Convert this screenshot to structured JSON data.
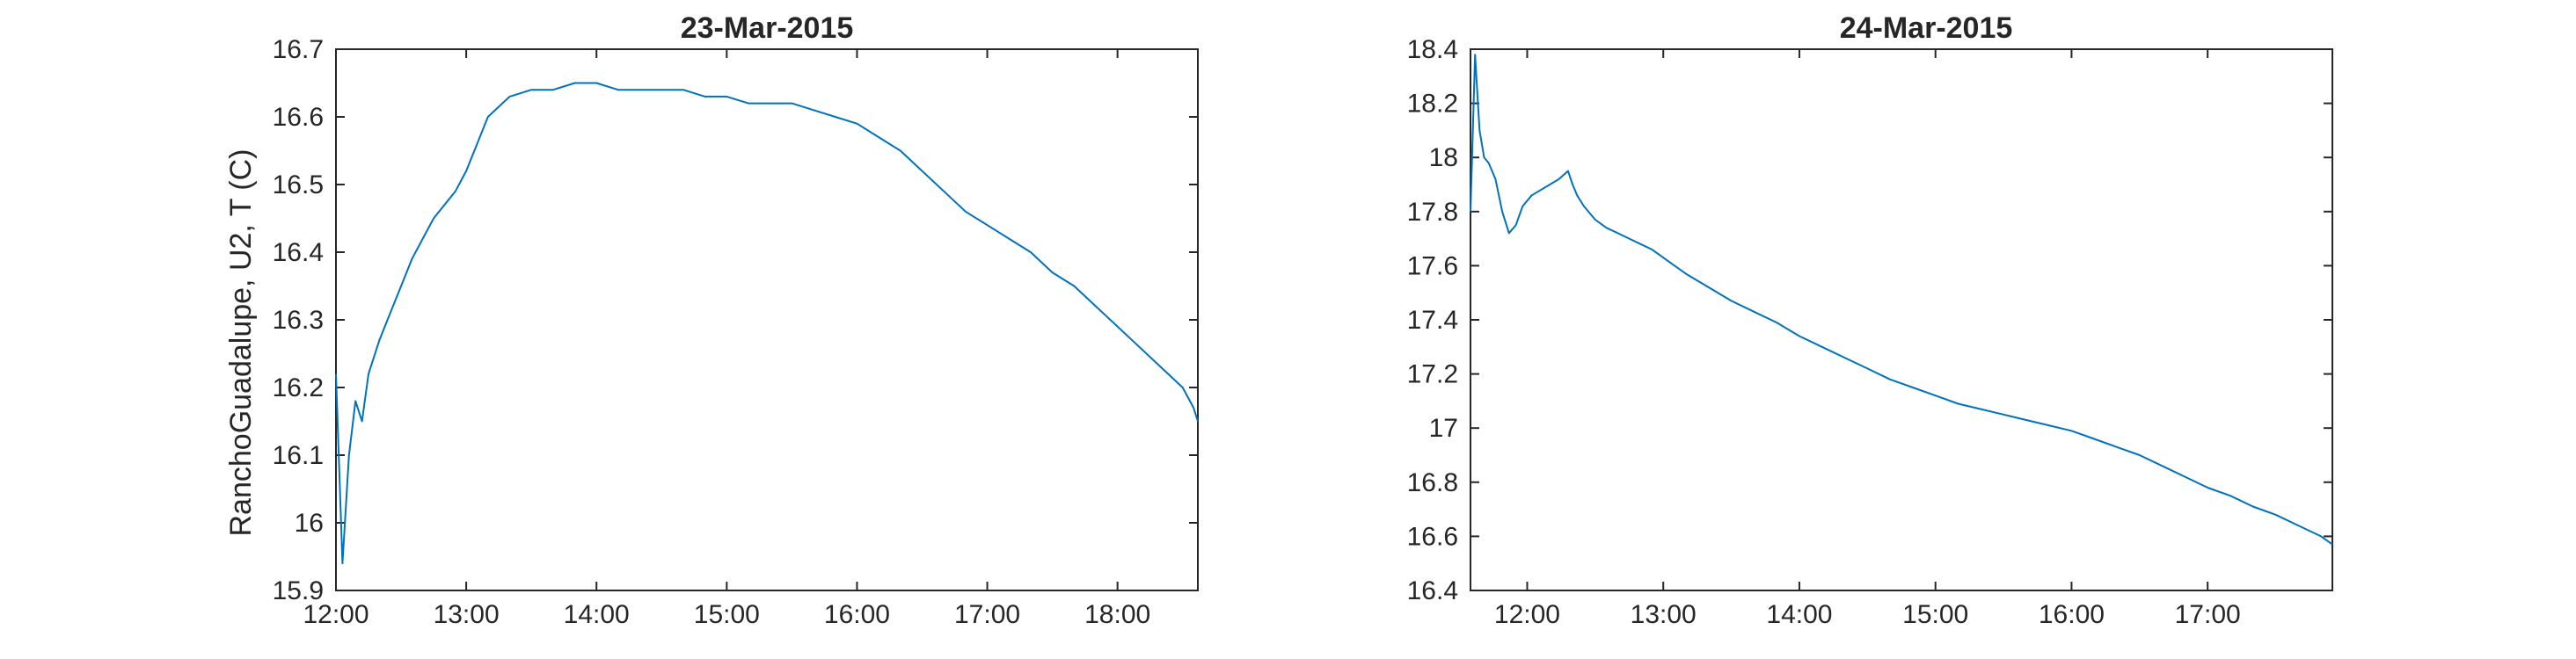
{
  "chart_data": [
    {
      "type": "line",
      "title": "23-Mar-2015",
      "xlabel": "",
      "ylabel": "RanchoGuadalupe, U2, T (C)",
      "xlim": [
        "12:00",
        "18:37"
      ],
      "ylim": [
        15.9,
        16.7
      ],
      "xticks": [
        "12:00",
        "13:00",
        "14:00",
        "15:00",
        "16:00",
        "17:00",
        "18:00"
      ],
      "yticks": [
        "15.9",
        "16",
        "16.1",
        "16.2",
        "16.3",
        "16.4",
        "16.5",
        "16.6",
        "16.7"
      ],
      "grid": false,
      "series": [
        {
          "color": "#0072BD",
          "x": [
            "12:00",
            "12:03",
            "12:06",
            "12:09",
            "12:12",
            "12:15",
            "12:20",
            "12:25",
            "12:30",
            "12:35",
            "12:40",
            "12:45",
            "12:50",
            "12:55",
            "13:00",
            "13:05",
            "13:10",
            "13:20",
            "13:30",
            "13:40",
            "13:50",
            "14:00",
            "14:10",
            "14:20",
            "14:30",
            "14:40",
            "14:50",
            "15:00",
            "15:10",
            "15:20",
            "15:30",
            "15:40",
            "15:50",
            "16:00",
            "16:10",
            "16:20",
            "16:30",
            "16:40",
            "16:50",
            "17:00",
            "17:10",
            "17:20",
            "17:30",
            "17:40",
            "17:50",
            "18:00",
            "18:10",
            "18:20",
            "18:30",
            "18:35",
            "18:37"
          ],
          "y": [
            16.22,
            15.94,
            16.1,
            16.18,
            16.15,
            16.22,
            16.27,
            16.31,
            16.35,
            16.39,
            16.42,
            16.45,
            16.47,
            16.49,
            16.52,
            16.56,
            16.6,
            16.63,
            16.64,
            16.64,
            16.65,
            16.65,
            16.64,
            16.64,
            16.64,
            16.64,
            16.63,
            16.63,
            16.62,
            16.62,
            16.62,
            16.61,
            16.6,
            16.59,
            16.57,
            16.55,
            16.52,
            16.49,
            16.46,
            16.44,
            16.42,
            16.4,
            16.37,
            16.35,
            16.32,
            16.29,
            16.26,
            16.23,
            16.2,
            16.17,
            16.15
          ]
        }
      ]
    },
    {
      "type": "line",
      "title": "24-Mar-2015",
      "xlabel": "",
      "ylabel": "",
      "xlim": [
        "11:35",
        "17:55"
      ],
      "ylim": [
        16.4,
        18.4
      ],
      "xticks": [
        "12:00",
        "13:00",
        "14:00",
        "15:00",
        "16:00",
        "17:00"
      ],
      "yticks": [
        "16.4",
        "16.6",
        "16.8",
        "17",
        "17.2",
        "17.4",
        "17.6",
        "17.8",
        "18",
        "18.2",
        "18.4"
      ],
      "grid": false,
      "series": [
        {
          "color": "#0072BD",
          "x": [
            "11:35",
            "11:37",
            "11:39",
            "11:41",
            "11:43",
            "11:46",
            "11:49",
            "11:52",
            "11:55",
            "11:58",
            "12:02",
            "12:06",
            "12:10",
            "12:14",
            "12:18",
            "12:20",
            "12:22",
            "12:25",
            "12:30",
            "12:35",
            "12:40",
            "12:45",
            "12:50",
            "12:55",
            "13:00",
            "13:05",
            "13:10",
            "13:20",
            "13:30",
            "13:40",
            "13:50",
            "14:00",
            "14:10",
            "14:20",
            "14:30",
            "14:40",
            "14:50",
            "15:00",
            "15:10",
            "15:20",
            "15:30",
            "15:40",
            "15:50",
            "16:00",
            "16:10",
            "16:20",
            "16:30",
            "16:40",
            "16:50",
            "17:00",
            "17:10",
            "17:20",
            "17:30",
            "17:40",
            "17:50",
            "17:55"
          ],
          "y": [
            17.8,
            18.38,
            18.1,
            18.0,
            17.98,
            17.92,
            17.8,
            17.72,
            17.75,
            17.82,
            17.86,
            17.88,
            17.9,
            17.92,
            17.95,
            17.9,
            17.86,
            17.82,
            17.77,
            17.74,
            17.72,
            17.7,
            17.68,
            17.66,
            17.63,
            17.6,
            17.57,
            17.52,
            17.47,
            17.43,
            17.39,
            17.34,
            17.3,
            17.26,
            17.22,
            17.18,
            17.15,
            17.12,
            17.09,
            17.07,
            17.05,
            17.03,
            17.01,
            16.99,
            16.96,
            16.93,
            16.9,
            16.86,
            16.82,
            16.78,
            16.75,
            16.71,
            16.68,
            16.64,
            16.6,
            16.57
          ]
        }
      ]
    }
  ]
}
